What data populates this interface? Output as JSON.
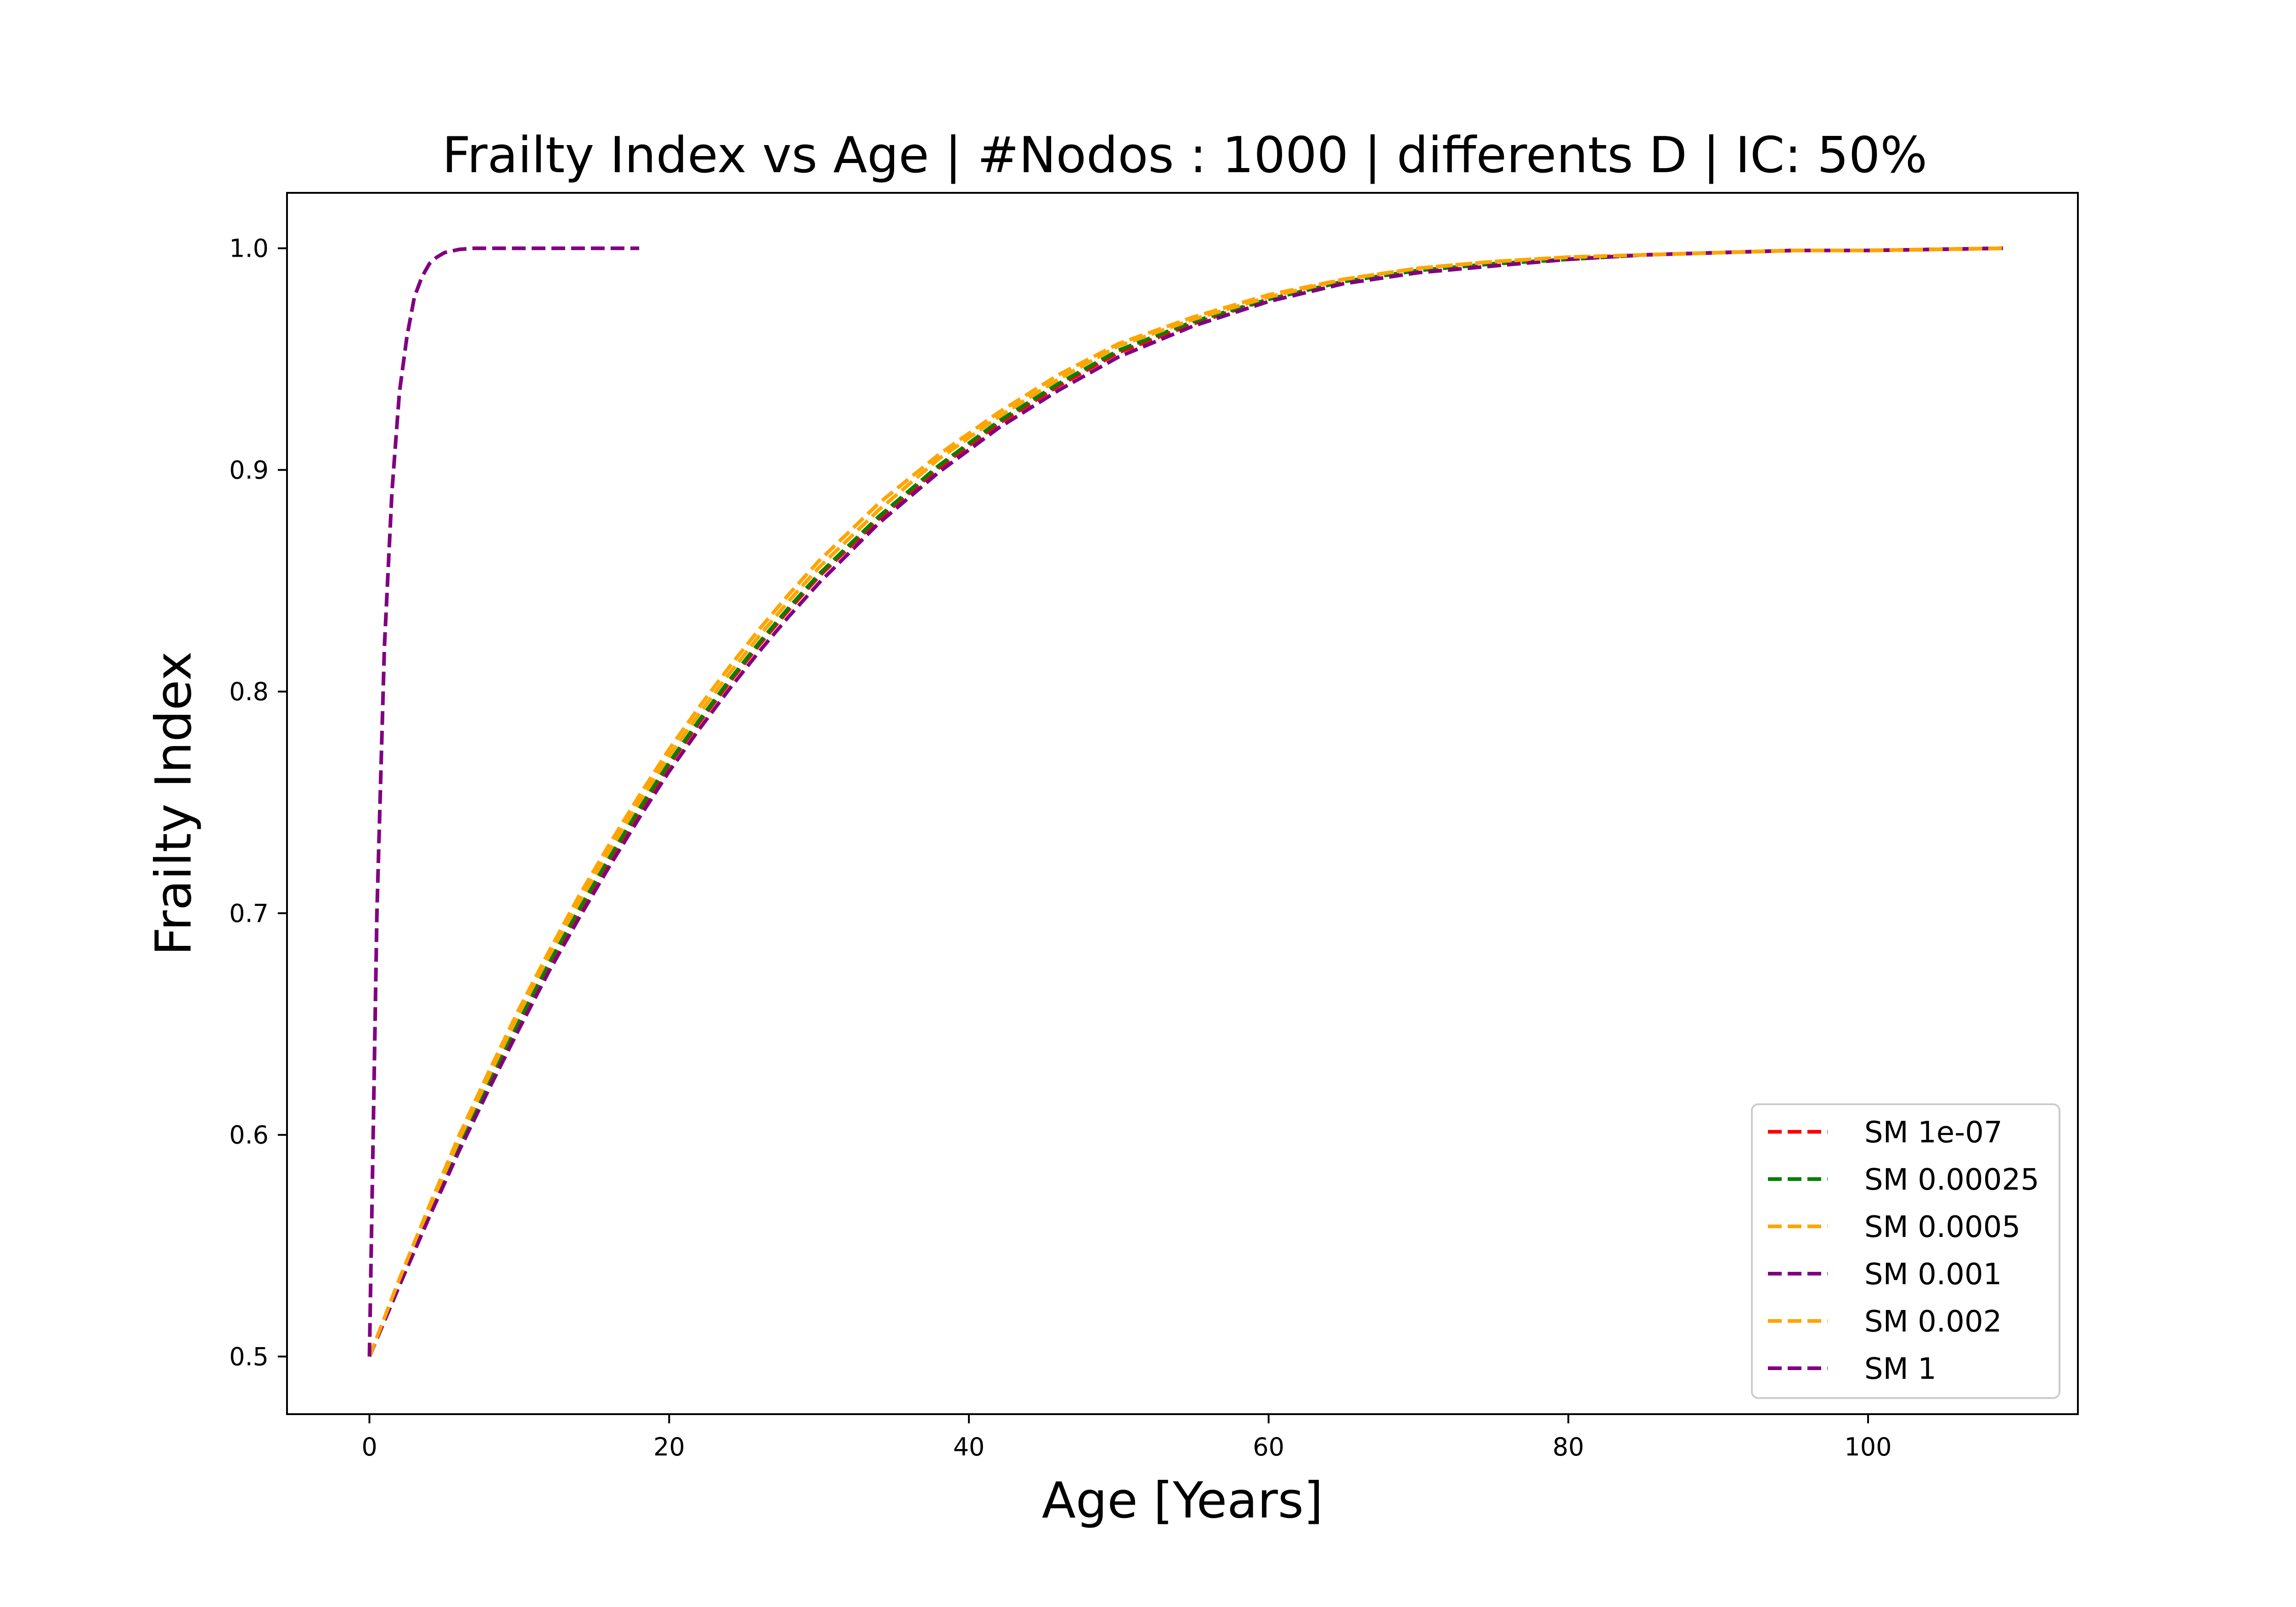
{
  "chart_data": {
    "type": "line",
    "title": "Frailty Index vs Age | #Nodos : 1000 | differents D | IC: 50%",
    "xlabel": "Age [Years]",
    "ylabel": "Frailty Index",
    "xlim": [
      -5.5,
      114
    ],
    "ylim": [
      0.474,
      1.025
    ],
    "xticks": [
      0,
      20,
      40,
      60,
      80,
      100
    ],
    "yticks": [
      0.5,
      0.6,
      0.7,
      0.8,
      0.9,
      1.0
    ],
    "xtick_labels": [
      "0",
      "20",
      "40",
      "60",
      "80",
      "100"
    ],
    "ytick_labels": [
      "0.5",
      "0.6",
      "0.7",
      "0.8",
      "0.9",
      "1.0"
    ],
    "grid": false,
    "legend_position": "lower-right",
    "line_style": "dashed",
    "series": [
      {
        "name": "SM 1e-07",
        "color": "#ff0000",
        "x": [
          0,
          2,
          4,
          6,
          8,
          10,
          12,
          14,
          16,
          18,
          20,
          22,
          24,
          26,
          28,
          30,
          34,
          38,
          42,
          46,
          50,
          55,
          60,
          65,
          70,
          75,
          80,
          85,
          90,
          95,
          100,
          109
        ],
        "y": [
          0.5,
          0.533,
          0.565,
          0.595,
          0.624,
          0.651,
          0.677,
          0.701,
          0.724,
          0.746,
          0.767,
          0.786,
          0.804,
          0.821,
          0.837,
          0.852,
          0.878,
          0.901,
          0.921,
          0.938,
          0.953,
          0.966,
          0.977,
          0.985,
          0.99,
          0.993,
          0.995,
          0.997,
          0.998,
          0.999,
          0.999,
          1.0
        ]
      },
      {
        "name": "SM 0.00025",
        "color": "#008000",
        "x": [
          0,
          2,
          4,
          6,
          8,
          10,
          12,
          14,
          16,
          18,
          20,
          22,
          24,
          26,
          28,
          30,
          34,
          38,
          42,
          46,
          50,
          55,
          60,
          65,
          70,
          75,
          80,
          85,
          90,
          95,
          100,
          109
        ],
        "y": [
          0.5,
          0.533,
          0.565,
          0.596,
          0.625,
          0.652,
          0.678,
          0.702,
          0.725,
          0.747,
          0.768,
          0.787,
          0.805,
          0.822,
          0.838,
          0.853,
          0.879,
          0.902,
          0.922,
          0.939,
          0.954,
          0.967,
          0.977,
          0.985,
          0.99,
          0.993,
          0.995,
          0.997,
          0.998,
          0.999,
          0.999,
          1.0
        ]
      },
      {
        "name": "SM 0.0005",
        "color": "#ffa500",
        "x": [
          0,
          2,
          4,
          6,
          8,
          10,
          12,
          14,
          16,
          18,
          20,
          22,
          24,
          26,
          28,
          30,
          34,
          38,
          42,
          46,
          50,
          55,
          60,
          65,
          70,
          75,
          80,
          85,
          90,
          95,
          100,
          109
        ],
        "y": [
          0.5,
          0.534,
          0.567,
          0.598,
          0.627,
          0.655,
          0.681,
          0.705,
          0.728,
          0.75,
          0.771,
          0.79,
          0.808,
          0.825,
          0.841,
          0.856,
          0.882,
          0.905,
          0.924,
          0.941,
          0.956,
          0.968,
          0.978,
          0.986,
          0.991,
          0.994,
          0.996,
          0.997,
          0.998,
          0.999,
          0.999,
          1.0
        ]
      },
      {
        "name": "SM 0.001",
        "color": "#800080",
        "x": [
          0,
          2,
          4,
          6,
          8,
          10,
          12,
          14,
          16,
          18,
          20,
          22,
          24,
          26,
          28,
          30,
          34,
          38,
          42,
          46,
          50,
          55,
          60,
          65,
          70,
          75,
          80,
          85,
          90,
          95,
          100,
          109
        ],
        "y": [
          0.5,
          0.532,
          0.563,
          0.593,
          0.621,
          0.648,
          0.674,
          0.698,
          0.721,
          0.743,
          0.764,
          0.783,
          0.801,
          0.818,
          0.834,
          0.849,
          0.876,
          0.899,
          0.919,
          0.936,
          0.951,
          0.965,
          0.976,
          0.984,
          0.989,
          0.992,
          0.995,
          0.997,
          0.998,
          0.999,
          0.999,
          1.0
        ]
      },
      {
        "name": "SM 0.002",
        "color": "#ffa500",
        "x": [
          0,
          2,
          4,
          6,
          8,
          10,
          12,
          14,
          16,
          18,
          20,
          22,
          24,
          26,
          28,
          30,
          34,
          38,
          42,
          46,
          50,
          55,
          60,
          65,
          70,
          75,
          80,
          85,
          90,
          95,
          100,
          109
        ],
        "y": [
          0.5,
          0.535,
          0.568,
          0.6,
          0.629,
          0.657,
          0.683,
          0.708,
          0.731,
          0.753,
          0.774,
          0.793,
          0.811,
          0.828,
          0.844,
          0.859,
          0.885,
          0.907,
          0.926,
          0.943,
          0.957,
          0.969,
          0.979,
          0.986,
          0.991,
          0.994,
          0.996,
          0.997,
          0.998,
          0.999,
          0.999,
          1.0
        ]
      },
      {
        "name": "SM 1",
        "color": "#800080",
        "x": [
          0,
          0.5,
          1,
          1.5,
          2,
          2.5,
          3,
          3.5,
          4,
          4.5,
          5,
          6,
          7,
          8,
          10,
          12,
          14,
          16,
          18
        ],
        "y": [
          0.5,
          0.7,
          0.82,
          0.89,
          0.935,
          0.96,
          0.978,
          0.987,
          0.993,
          0.996,
          0.998,
          0.9995,
          1.0,
          1.0,
          1.0,
          1.0,
          1.0,
          1.0,
          1.0
        ]
      }
    ]
  }
}
